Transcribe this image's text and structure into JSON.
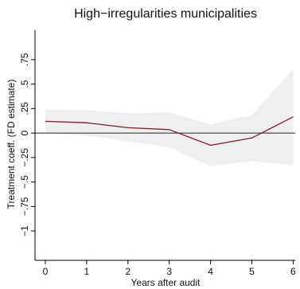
{
  "chart_data": {
    "type": "line",
    "title": "High−irregularities municipalities",
    "xlabel": "Years after audit",
    "ylabel": "Treatment coeff. (FD estimate)",
    "x": [
      0,
      1,
      2,
      3,
      4,
      5,
      6
    ],
    "x_tick_labels": [
      "0",
      "1",
      "2",
      "3",
      "4",
      "5",
      "6"
    ],
    "y_ticks": [
      -1,
      -0.75,
      -0.5,
      -0.25,
      0,
      0.25,
      0.5,
      0.75
    ],
    "y_tick_labels": [
      "−1",
      "−.75",
      "−.5",
      "−.25",
      "0",
      ".25",
      ".5",
      ".75"
    ],
    "xlim": [
      -0.25,
      6.05
    ],
    "ylim": [
      -1.3,
      1.05
    ],
    "series": [
      {
        "role": "estimate",
        "values": [
          0.12,
          0.105,
          0.055,
          0.035,
          -0.125,
          -0.05,
          0.165
        ],
        "color": "#7a1f1f"
      }
    ],
    "confidence_band": {
      "lower": [
        0.0,
        -0.025,
        -0.085,
        -0.145,
        -0.34,
        -0.285,
        -0.33
      ],
      "upper": [
        0.24,
        0.235,
        0.2,
        0.21,
        0.09,
        0.185,
        0.655
      ],
      "color": "#efefef"
    },
    "reference_line": {
      "y": 0,
      "color": "#222222"
    },
    "grid": false,
    "legend": "none"
  }
}
